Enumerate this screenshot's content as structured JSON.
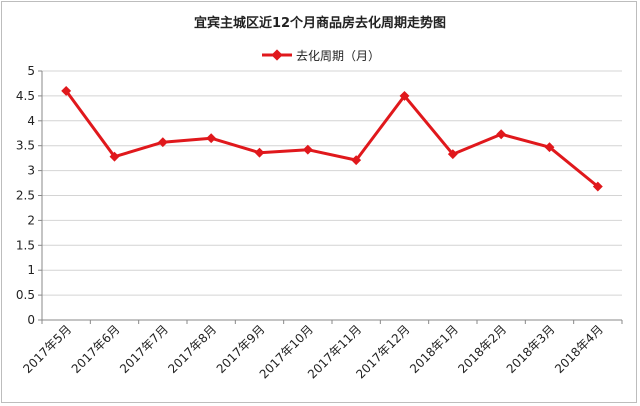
{
  "chart_data": {
    "type": "line",
    "title": "宜宾主城区近12个月商品房去化周期走势图",
    "xlabel": "",
    "ylabel": "",
    "categories": [
      "2017年5月",
      "2017年6月",
      "2017年7月",
      "2017年8月",
      "2017年9月",
      "2017年10月",
      "2017年11月",
      "2017年12月",
      "2018年1月",
      "2018年2月",
      "2018年3月",
      "2018年4月"
    ],
    "series": [
      {
        "name": "去化周期（月）",
        "values": [
          4.6,
          3.28,
          3.57,
          3.65,
          3.36,
          3.42,
          3.21,
          4.5,
          3.33,
          3.73,
          3.47,
          2.68
        ],
        "color": "#e0181c"
      }
    ],
    "ylim": [
      0,
      5
    ],
    "yticks": [
      "0",
      "0.5",
      "1",
      "1.5",
      "2",
      "2.5",
      "3",
      "3.5",
      "4",
      "4.5",
      "5"
    ],
    "grid": true,
    "legend": "top"
  }
}
